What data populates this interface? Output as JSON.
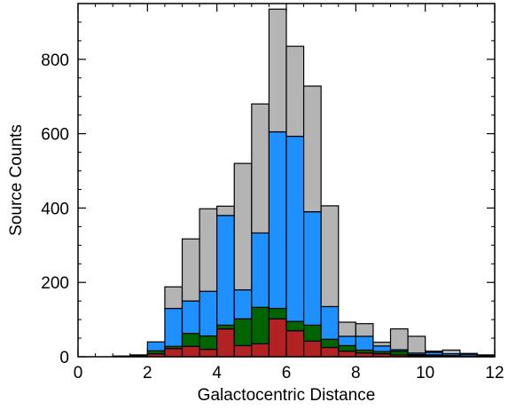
{
  "chart_data": {
    "type": "bar",
    "stacked": true,
    "xlabel": "Galactocentric Distance",
    "ylabel": "Source Counts",
    "xlim": [
      0,
      12
    ],
    "ylim": [
      0,
      950
    ],
    "xticks": [
      0,
      2,
      4,
      6,
      8,
      10,
      12
    ],
    "yticks": [
      0,
      200,
      400,
      600,
      800
    ],
    "bin_width": 0.5,
    "bin_starts": [
      1.0,
      1.5,
      2.0,
      2.5,
      3.0,
      3.5,
      4.0,
      4.5,
      5.0,
      5.5,
      6.0,
      6.5,
      7.0,
      7.5,
      8.0,
      8.5,
      9.0,
      9.5,
      10.0,
      10.5,
      11.0,
      11.5
    ],
    "series": [
      {
        "color": "#b22222",
        "values": [
          1,
          2,
          8,
          22,
          28,
          20,
          75,
          30,
          35,
          102,
          70,
          42,
          25,
          15,
          10,
          8,
          5,
          3,
          3,
          2,
          1,
          1
        ]
      },
      {
        "color": "#006400",
        "values": [
          0,
          0,
          8,
          6,
          35,
          36,
          10,
          72,
          98,
          28,
          25,
          43,
          22,
          15,
          8,
          6,
          10,
          3,
          2,
          1,
          1,
          0
        ]
      },
      {
        "color": "#1e90ff",
        "values": [
          0,
          1,
          24,
          102,
          87,
          120,
          295,
          78,
          200,
          475,
          498,
          305,
          88,
          25,
          37,
          15,
          4,
          4,
          7,
          5,
          5,
          2
        ]
      },
      {
        "color": "#b4b4b4",
        "values": [
          1,
          2,
          0,
          58,
          167,
          222,
          25,
          340,
          347,
          330,
          242,
          338,
          271,
          38,
          34,
          10,
          56,
          45,
          3,
          10,
          2,
          2
        ]
      }
    ]
  }
}
